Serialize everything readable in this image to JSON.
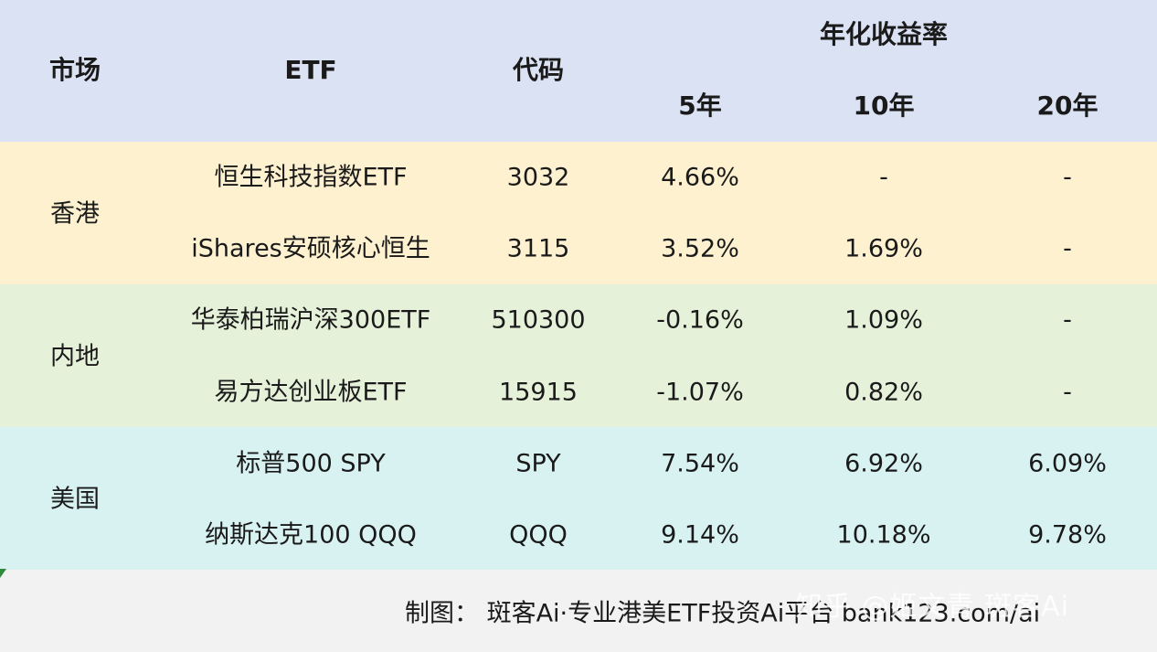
{
  "header": {
    "market": "市场",
    "etf": "ETF",
    "code": "代码",
    "annualized": "年化收益率",
    "y5": "5年",
    "y10": "10年",
    "y20": "20年"
  },
  "groups": [
    {
      "market": "香港",
      "color": "#fdf1cf",
      "rows": [
        {
          "etf": "恒生科技指数ETF",
          "code": "3032",
          "y5": "4.66%",
          "y10": "-",
          "y20": "-"
        },
        {
          "etf": "iShares安硕核心恒生",
          "code": "3115",
          "y5": "3.52%",
          "y10": "1.69%",
          "y20": "-"
        }
      ]
    },
    {
      "market": "内地",
      "color": "#e6f1da",
      "rows": [
        {
          "etf": "华泰柏瑞沪深300ETF",
          "code": "510300",
          "y5": "-0.16%",
          "y10": "1.09%",
          "y20": "-"
        },
        {
          "etf": "易方达创业板ETF",
          "code": "15915",
          "y5": "-1.07%",
          "y10": "0.82%",
          "y20": "-"
        }
      ]
    },
    {
      "market": "美国",
      "color": "#d8f2f2",
      "rows": [
        {
          "etf": "标普500 SPY",
          "code": "SPY",
          "y5": "7.54%",
          "y10": "6.92%",
          "y20": "6.09%"
        },
        {
          "etf": "纳斯达克100 QQQ",
          "code": "QQQ",
          "y5": "9.14%",
          "y10": "10.18%",
          "y20": "9.78%"
        }
      ]
    }
  ],
  "footer": "制图： 斑客Ai·专业港美ETF投资Ai平台 bank123.com/ai",
  "watermark": "知乎 @姬文青 斑客Ai",
  "colors": {
    "header": "#dbe2f3",
    "accent": "#2e8b3a"
  }
}
